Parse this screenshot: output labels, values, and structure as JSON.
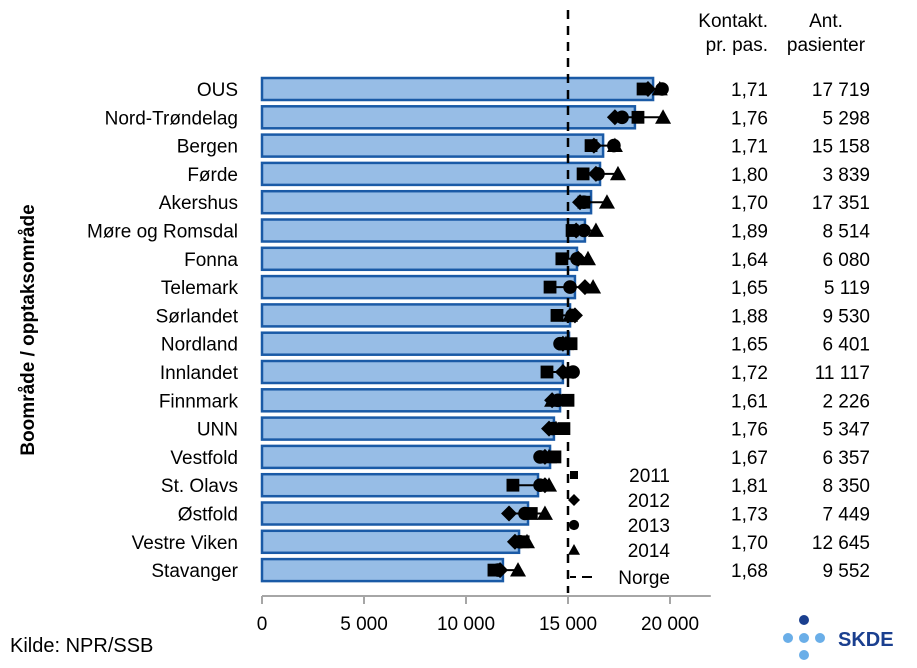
{
  "chart_data": {
    "type": "bar",
    "ylabel": "Boområde / opptaksområde",
    "xlabel": "",
    "xlim": [
      0,
      22000
    ],
    "xticks": [
      0,
      5000,
      10000,
      15000,
      20000
    ],
    "xtick_labels": [
      "0",
      "5 000",
      "10 000",
      "15 000",
      "20 000"
    ],
    "categories": [
      "OUS",
      "Nord-Trøndelag",
      "Bergen",
      "Førde",
      "Akershus",
      "Møre og Romsdal",
      "Fonna",
      "Telemark",
      "Sørlandet",
      "Nordland",
      "Innlandet",
      "Finnmark",
      "UNN",
      "Vestfold",
      "St. Olavs",
      "Østfold",
      "Vestre Viken",
      "Stavanger"
    ],
    "bar_values": [
      19170,
      18280,
      16720,
      16570,
      16130,
      15830,
      15440,
      15340,
      15100,
      15050,
      14750,
      14610,
      14310,
      14120,
      13530,
      13040,
      12600,
      11810
    ],
    "series": [
      {
        "name": "2011",
        "marker": "square",
        "values": [
          18680,
          18430,
          16130,
          15740,
          15780,
          15200,
          14700,
          14120,
          14460,
          15150,
          13970,
          15000,
          14800,
          14360,
          12300,
          13200,
          12800,
          11370
        ]
      },
      {
        "name": "2012",
        "marker": "diamond",
        "values": [
          18920,
          17300,
          16270,
          16370,
          15590,
          15400,
          15500,
          15830,
          15340,
          14750,
          14750,
          14220,
          14070,
          13870,
          13870,
          12110,
          12400,
          11670
        ]
      },
      {
        "name": "2013",
        "marker": "circle",
        "values": [
          19610,
          17650,
          17250,
          16470,
          15780,
          15780,
          15440,
          15100,
          15200,
          14610,
          15250,
          14510,
          14260,
          13630,
          13630,
          12890,
          12650,
          11570
        ]
      },
      {
        "name": "2014",
        "marker": "triangle",
        "values": [
          19500,
          19660,
          17300,
          17450,
          16910,
          16370,
          15980,
          16230,
          15100,
          14900,
          15000,
          14220,
          14410,
          14070,
          14070,
          13870,
          12990,
          12550
        ]
      }
    ],
    "reference_line": {
      "name": "Norge",
      "value": 15000
    },
    "table": {
      "headers": [
        [
          "Kontakt.",
          "pr. pas."
        ],
        [
          "Ant.",
          "pasienter"
        ]
      ],
      "kontakt": [
        "1,71",
        "1,76",
        "1,71",
        "1,80",
        "1,70",
        "1,89",
        "1,64",
        "1,65",
        "1,88",
        "1,65",
        "1,72",
        "1,61",
        "1,76",
        "1,67",
        "1,81",
        "1,73",
        "1,70",
        "1,68"
      ],
      "pasienter": [
        "17 719",
        "5 298",
        "15 158",
        "3 839",
        "17 351",
        "8 514",
        "6 080",
        "5 119",
        "9 530",
        "6 401",
        "11 117",
        "2 226",
        "5 347",
        "6 357",
        "8 350",
        "7 449",
        "12 645",
        "9 552"
      ]
    },
    "legend_placement": "bottom-right-inside",
    "colors": {
      "bar_fill": "#97bde6",
      "bar_stroke": "#1a5aa6",
      "marker": "#000000",
      "axis": "#a6a6a6"
    }
  },
  "footer": {
    "source": "Kilde: NPR/SSB",
    "logo_text": "SKDE",
    "logo_dot_dark": "#1a3f8f",
    "logo_dot_light": "#6aaee8"
  }
}
